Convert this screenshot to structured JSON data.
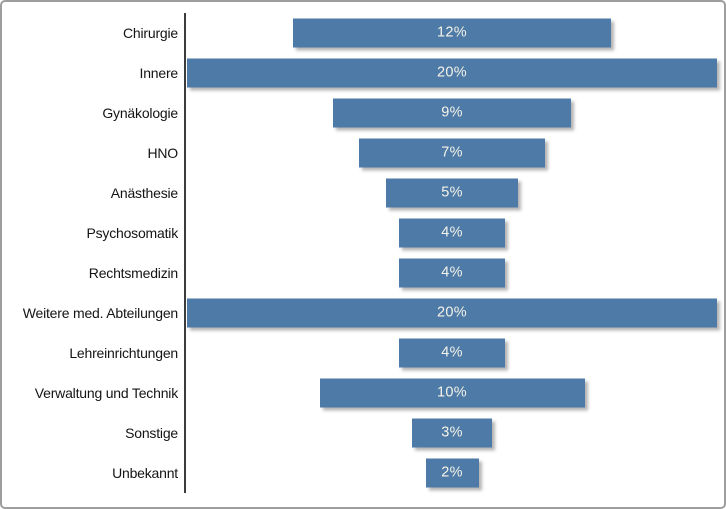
{
  "window": {
    "background_color": "#ffffff",
    "frame_border_color": "#9e9e9e"
  },
  "chart_data": {
    "type": "bar",
    "orientation": "horizontal",
    "bar_alignment": "center",
    "title": "",
    "xlabel": "",
    "ylabel": "",
    "grid": false,
    "legend": false,
    "xlim": [
      0,
      20
    ],
    "categories": [
      "Chirurgie",
      "Innere",
      "Gynäkologie",
      "HNO",
      "Anästhesie",
      "Psychosomatik",
      "Rechtsmedizin",
      "Weitere med. Abteilungen",
      "Lehreinrichtungen",
      "Verwaltung und Technik",
      "Sonstige",
      "Unbekannt"
    ],
    "values": [
      12,
      20,
      9,
      7,
      5,
      4,
      4,
      20,
      4,
      10,
      3,
      2
    ],
    "value_labels": [
      "12%",
      "20%",
      "9%",
      "7%",
      "5%",
      "4%",
      "4%",
      "20%",
      "4%",
      "10%",
      "3%",
      "2%"
    ],
    "bar_color": "#4d7aa6",
    "bar_value_text_color": "#f6f3ea",
    "category_text_color": "#141414",
    "axis_line_color": "#3c3c3c"
  }
}
